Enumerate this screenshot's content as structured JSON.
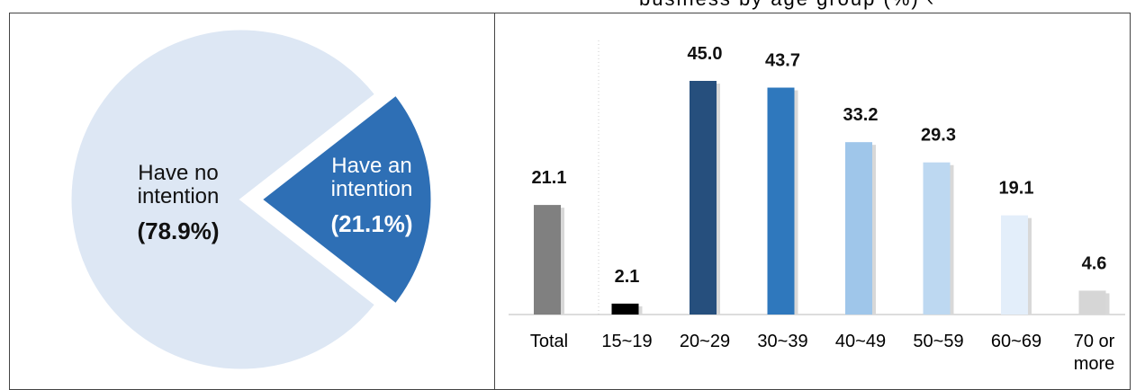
{
  "caption": "business by age group (%) ‹",
  "chart_data": [
    {
      "type": "pie",
      "labels": [
        "Have no intention",
        "Have an intention"
      ],
      "display_labels": [
        [
          "Have no",
          "intention"
        ],
        [
          "Have an",
          "intention"
        ]
      ],
      "display_values": [
        "(78.9%)",
        "(21.1%)"
      ],
      "values": [
        78.9,
        21.1
      ],
      "colors": [
        "#dde7f4",
        "#2e6fb5"
      ]
    },
    {
      "type": "bar",
      "categories": [
        "Total",
        "15~19",
        "20~29",
        "30~39",
        "40~49",
        "50~59",
        "60~69",
        "70 or more"
      ],
      "display_categories": [
        [
          "Total"
        ],
        [
          "15~19"
        ],
        [
          "20~29"
        ],
        [
          "30~39"
        ],
        [
          "40~49"
        ],
        [
          "50~59"
        ],
        [
          "60~69"
        ],
        [
          "70 or",
          "more"
        ]
      ],
      "values": [
        21.1,
        2.1,
        45.0,
        43.7,
        33.2,
        29.3,
        19.1,
        4.6
      ],
      "value_labels": [
        "21.1",
        "2.1",
        "45.0",
        "43.7",
        "33.2",
        "29.3",
        "19.1",
        "4.6"
      ],
      "colors": [
        "#808080",
        "#000000",
        "#264f7d",
        "#2f78bd",
        "#9fc6ea",
        "#bdd8f1",
        "#e3eefa",
        "#d6d6d6"
      ],
      "ylim": [
        0,
        45
      ]
    }
  ]
}
